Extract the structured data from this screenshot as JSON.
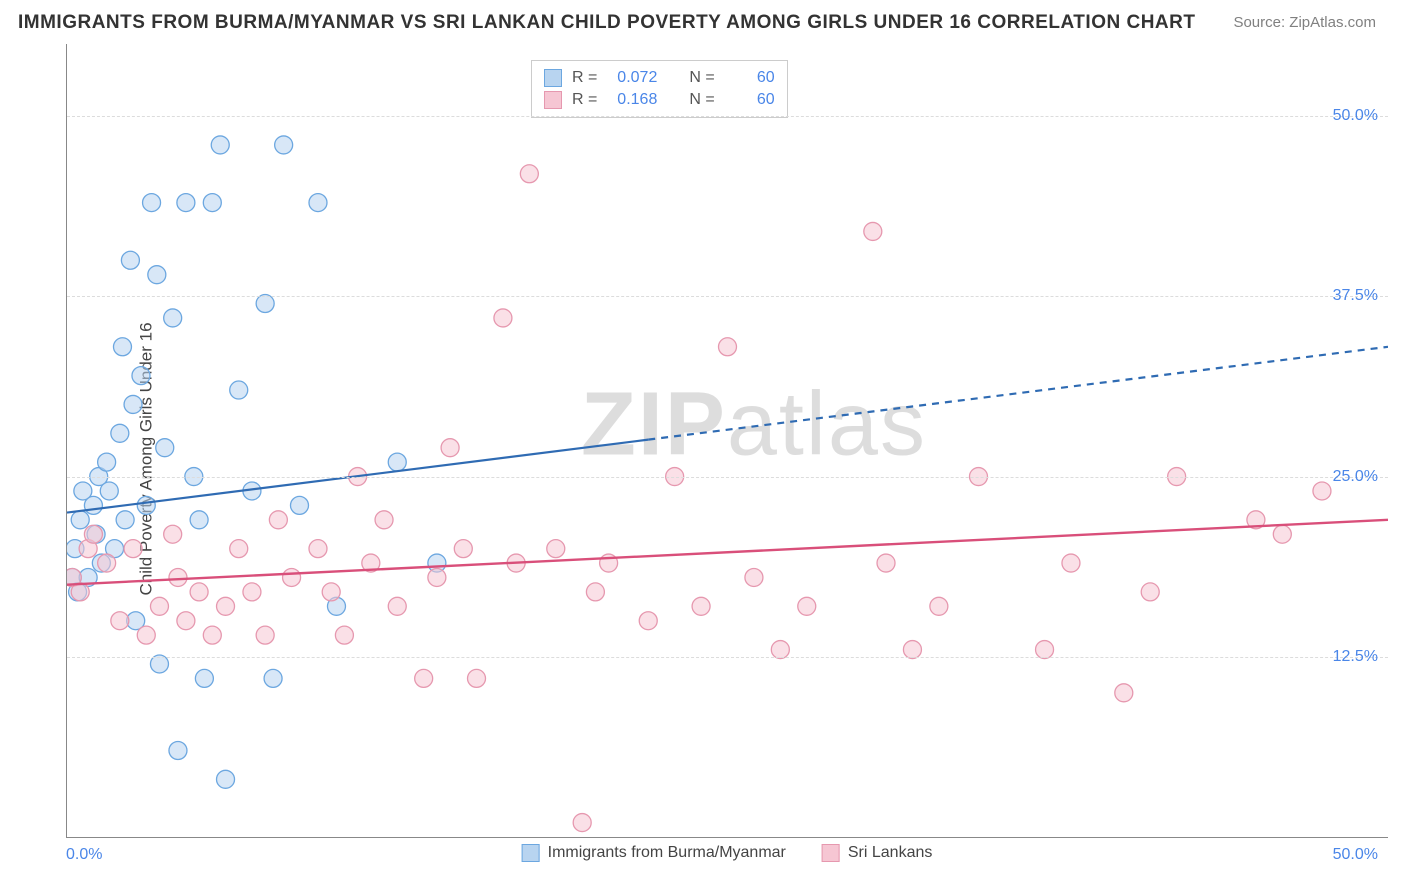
{
  "title": "IMMIGRANTS FROM BURMA/MYANMAR VS SRI LANKAN CHILD POVERTY AMONG GIRLS UNDER 16 CORRELATION CHART",
  "source_label": "Source: ZipAtlas.com",
  "watermark_zip": "ZIP",
  "watermark_atlas": "atlas",
  "chart": {
    "type": "scatter",
    "y_axis_title": "Child Poverty Among Girls Under 16",
    "xlim": [
      0,
      50
    ],
    "ylim": [
      0,
      55
    ],
    "x_tick_min_label": "0.0%",
    "x_tick_max_label": "50.0%",
    "y_ticks": [
      {
        "value": 12.5,
        "label": "12.5%"
      },
      {
        "value": 25.0,
        "label": "25.0%"
      },
      {
        "value": 37.5,
        "label": "37.5%"
      },
      {
        "value": 50.0,
        "label": "50.0%"
      }
    ],
    "background_color": "#ffffff",
    "grid_color": "#dcdcdc",
    "axis_color": "#888888",
    "tick_label_color": "#4a86e8",
    "marker_radius": 9,
    "marker_stroke_width": 1.3,
    "series": [
      {
        "name": "Immigrants from Burma/Myanmar",
        "fill": "#b8d4f0",
        "stroke": "#6ca7e0",
        "fill_opacity": 0.55,
        "R": "0.072",
        "N": "60",
        "trend": {
          "x1": 0,
          "y1": 22.5,
          "x2": 50,
          "y2": 34.0,
          "solid_until_x": 22,
          "stroke": "#2f6bb3",
          "width": 2.2
        },
        "points": [
          [
            0.2,
            18
          ],
          [
            0.3,
            20
          ],
          [
            0.4,
            17
          ],
          [
            0.5,
            22
          ],
          [
            0.6,
            24
          ],
          [
            0.8,
            18
          ],
          [
            1.0,
            23
          ],
          [
            1.1,
            21
          ],
          [
            1.2,
            25
          ],
          [
            1.3,
            19
          ],
          [
            1.5,
            26
          ],
          [
            1.6,
            24
          ],
          [
            1.8,
            20
          ],
          [
            2.0,
            28
          ],
          [
            2.1,
            34
          ],
          [
            2.2,
            22
          ],
          [
            2.4,
            40
          ],
          [
            2.5,
            30
          ],
          [
            2.6,
            15
          ],
          [
            2.8,
            32
          ],
          [
            3.0,
            23
          ],
          [
            3.2,
            44
          ],
          [
            3.4,
            39
          ],
          [
            3.5,
            12
          ],
          [
            3.7,
            27
          ],
          [
            4.0,
            36
          ],
          [
            4.2,
            6
          ],
          [
            4.5,
            44
          ],
          [
            4.8,
            25
          ],
          [
            5.0,
            22
          ],
          [
            5.2,
            11
          ],
          [
            5.5,
            44
          ],
          [
            5.8,
            48
          ],
          [
            6.0,
            4
          ],
          [
            6.5,
            31
          ],
          [
            7.0,
            24
          ],
          [
            7.5,
            37
          ],
          [
            7.8,
            11
          ],
          [
            8.2,
            48
          ],
          [
            8.8,
            23
          ],
          [
            9.5,
            44
          ],
          [
            10.2,
            16
          ],
          [
            12.5,
            26
          ],
          [
            14.0,
            19
          ]
        ]
      },
      {
        "name": "Sri Lankans",
        "fill": "#f6c6d3",
        "stroke": "#e698af",
        "fill_opacity": 0.55,
        "R": "0.168",
        "N": "60",
        "trend": {
          "x1": 0,
          "y1": 17.5,
          "x2": 50,
          "y2": 22.0,
          "solid_until_x": 50,
          "stroke": "#d94f7a",
          "width": 2.4
        },
        "points": [
          [
            0.2,
            18
          ],
          [
            0.5,
            17
          ],
          [
            0.8,
            20
          ],
          [
            1.0,
            21
          ],
          [
            1.5,
            19
          ],
          [
            2.0,
            15
          ],
          [
            2.5,
            20
          ],
          [
            3.0,
            14
          ],
          [
            3.5,
            16
          ],
          [
            4.0,
            21
          ],
          [
            4.2,
            18
          ],
          [
            4.5,
            15
          ],
          [
            5.0,
            17
          ],
          [
            5.5,
            14
          ],
          [
            6.0,
            16
          ],
          [
            6.5,
            20
          ],
          [
            7.0,
            17
          ],
          [
            7.5,
            14
          ],
          [
            8.0,
            22
          ],
          [
            8.5,
            18
          ],
          [
            9.5,
            20
          ],
          [
            10.0,
            17
          ],
          [
            10.5,
            14
          ],
          [
            11.0,
            25
          ],
          [
            11.5,
            19
          ],
          [
            12.0,
            22
          ],
          [
            12.5,
            16
          ],
          [
            13.5,
            11
          ],
          [
            14.0,
            18
          ],
          [
            14.5,
            27
          ],
          [
            15.0,
            20
          ],
          [
            15.5,
            11
          ],
          [
            16.5,
            36
          ],
          [
            17.0,
            19
          ],
          [
            17.5,
            46
          ],
          [
            18.5,
            20
          ],
          [
            19.5,
            1
          ],
          [
            20.0,
            17
          ],
          [
            20.5,
            19
          ],
          [
            22.0,
            15
          ],
          [
            23.0,
            25
          ],
          [
            24.0,
            16
          ],
          [
            25.0,
            34
          ],
          [
            26.0,
            18
          ],
          [
            27.0,
            13
          ],
          [
            28.0,
            16
          ],
          [
            30.5,
            42
          ],
          [
            31.0,
            19
          ],
          [
            32.0,
            13
          ],
          [
            33.0,
            16
          ],
          [
            34.5,
            25
          ],
          [
            37.0,
            13
          ],
          [
            38.0,
            19
          ],
          [
            40.0,
            10
          ],
          [
            41.0,
            17
          ],
          [
            42.0,
            25
          ],
          [
            45.0,
            22
          ],
          [
            46.0,
            21
          ],
          [
            47.5,
            24
          ]
        ]
      }
    ],
    "legend_top": {
      "rows": [
        {
          "swatch_fill": "#b8d4f0",
          "swatch_stroke": "#6ca7e0",
          "r_label": "R =",
          "r_val": "0.072",
          "n_label": "N =",
          "n_val": "60"
        },
        {
          "swatch_fill": "#f6c6d3",
          "swatch_stroke": "#e698af",
          "r_label": "R =",
          "r_val": "0.168",
          "n_label": "N =",
          "n_val": "60"
        }
      ]
    }
  }
}
